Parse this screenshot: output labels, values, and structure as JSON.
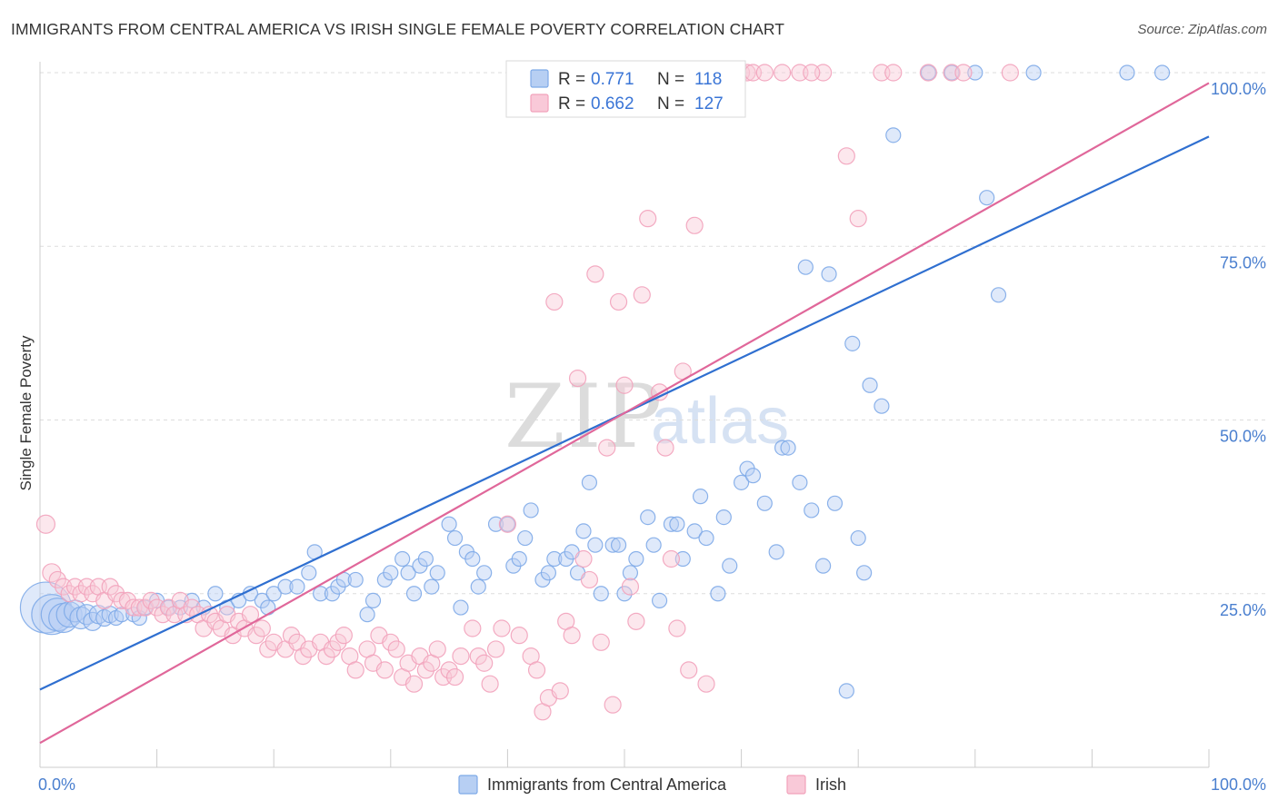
{
  "header": {
    "title": "IMMIGRANTS FROM CENTRAL AMERICA VS IRISH SINGLE FEMALE POVERTY CORRELATION CHART",
    "source": "Source: ZipAtlas.com"
  },
  "watermark": {
    "zip": "ZIP",
    "atlas": "atlas"
  },
  "chart_data": {
    "type": "scatter",
    "title": "IMMIGRANTS FROM CENTRAL AMERICA VS IRISH SINGLE FEMALE POVERTY CORRELATION CHART",
    "xlabel": "",
    "ylabel": "Single Female Poverty",
    "xlim": [
      0,
      100
    ],
    "ylim": [
      0,
      100
    ],
    "x_tick_labels": [
      "0.0%",
      "100.0%"
    ],
    "y_ticks": [
      {
        "value": 25,
        "label": "25.0%"
      },
      {
        "value": 50,
        "label": "50.0%"
      },
      {
        "value": 75,
        "label": "75.0%"
      },
      {
        "value": 100,
        "label": "100.0%"
      }
    ],
    "grid": "horizontal dashed",
    "legend_placement": "top-center",
    "stats": [
      {
        "r_label": "R =",
        "r_value": "0.771",
        "n_label": "N =",
        "n_value": "118"
      },
      {
        "r_label": "R =",
        "r_value": "0.662",
        "n_label": "N =",
        "n_value": "127"
      }
    ],
    "series": [
      {
        "name": "Immigrants from Central America",
        "color": "#7eaae8",
        "fill": "#b7cff3",
        "trend_color": "#2f6fd0",
        "trend": {
          "x": [
            0,
            100
          ],
          "y": [
            11.2,
            90.8
          ]
        },
        "points": [
          [
            0.5,
            23,
            28
          ],
          [
            1,
            22,
            22
          ],
          [
            1.5,
            22,
            18
          ],
          [
            2,
            21.5,
            16
          ],
          [
            2.5,
            22,
            14
          ],
          [
            3,
            22.5,
            12
          ],
          [
            3.5,
            21.5,
            12
          ],
          [
            4,
            22,
            11
          ],
          [
            4.5,
            21,
            10
          ],
          [
            5,
            22,
            10
          ],
          [
            5.5,
            21.5,
            9
          ],
          [
            6,
            22,
            9
          ],
          [
            6.5,
            21.5,
            8
          ],
          [
            7,
            22,
            8
          ],
          [
            8,
            22,
            8
          ],
          [
            8.5,
            21.5,
            8
          ],
          [
            9,
            23,
            8
          ],
          [
            10,
            24,
            8
          ],
          [
            11,
            23,
            8
          ],
          [
            12,
            23,
            8
          ],
          [
            13,
            24,
            8
          ],
          [
            14,
            23,
            8
          ],
          [
            15,
            25,
            8
          ],
          [
            16,
            23,
            8
          ],
          [
            17,
            24,
            8
          ],
          [
            18,
            25,
            8
          ],
          [
            19,
            24,
            8
          ],
          [
            19.5,
            23,
            8
          ],
          [
            20,
            25,
            8
          ],
          [
            21,
            26,
            8
          ],
          [
            22,
            26,
            8
          ],
          [
            23,
            28,
            8
          ],
          [
            23.5,
            31,
            8
          ],
          [
            24,
            25,
            8
          ],
          [
            25,
            25,
            8
          ],
          [
            25.5,
            26,
            8
          ],
          [
            26,
            27,
            8
          ],
          [
            27,
            27,
            8
          ],
          [
            28,
            22,
            8
          ],
          [
            28.5,
            24,
            8
          ],
          [
            29.5,
            27,
            8
          ],
          [
            30,
            28,
            8
          ],
          [
            31,
            30,
            8
          ],
          [
            31.5,
            28,
            8
          ],
          [
            32,
            25,
            8
          ],
          [
            32.5,
            29,
            8
          ],
          [
            33,
            30,
            8
          ],
          [
            33.5,
            26,
            8
          ],
          [
            34,
            28,
            8
          ],
          [
            35,
            35,
            8
          ],
          [
            35.5,
            33,
            8
          ],
          [
            36,
            23,
            8
          ],
          [
            36.5,
            31,
            8
          ],
          [
            37,
            30,
            8
          ],
          [
            37.5,
            26,
            8
          ],
          [
            38,
            28,
            8
          ],
          [
            39,
            35,
            8
          ],
          [
            40,
            35,
            8
          ],
          [
            40.5,
            29,
            8
          ],
          [
            41,
            30,
            8
          ],
          [
            41.5,
            33,
            8
          ],
          [
            42,
            37,
            8
          ],
          [
            43,
            27,
            8
          ],
          [
            43.5,
            28,
            8
          ],
          [
            44,
            30,
            8
          ],
          [
            45,
            30,
            8
          ],
          [
            45.5,
            31,
            8
          ],
          [
            46,
            28,
            8
          ],
          [
            46.5,
            34,
            8
          ],
          [
            47,
            41,
            8
          ],
          [
            47.5,
            32,
            8
          ],
          [
            48,
            25,
            8
          ],
          [
            49,
            32,
            8
          ],
          [
            49.5,
            32,
            8
          ],
          [
            50,
            25,
            8
          ],
          [
            50.5,
            28,
            8
          ],
          [
            51,
            30,
            8
          ],
          [
            52,
            36,
            8
          ],
          [
            52.5,
            32,
            8
          ],
          [
            53,
            24,
            8
          ],
          [
            54,
            35,
            8
          ],
          [
            54.5,
            35,
            8
          ],
          [
            55,
            30,
            8
          ],
          [
            56,
            34,
            8
          ],
          [
            56.5,
            39,
            8
          ],
          [
            57,
            33,
            8
          ],
          [
            58,
            25,
            8
          ],
          [
            58.5,
            36,
            8
          ],
          [
            59,
            29,
            8
          ],
          [
            60,
            41,
            8
          ],
          [
            60.5,
            43,
            8
          ],
          [
            61,
            42,
            8
          ],
          [
            62,
            38,
            8
          ],
          [
            63,
            31,
            8
          ],
          [
            63.5,
            46,
            8
          ],
          [
            64,
            46,
            8
          ],
          [
            65,
            41,
            8
          ],
          [
            65.5,
            72,
            8
          ],
          [
            66,
            37,
            8
          ],
          [
            67,
            29,
            8
          ],
          [
            67.5,
            71,
            8
          ],
          [
            68,
            38,
            8
          ],
          [
            69,
            11,
            8
          ],
          [
            69.5,
            61,
            8
          ],
          [
            70,
            33,
            8
          ],
          [
            70.5,
            28,
            8
          ],
          [
            71,
            55,
            8
          ],
          [
            72,
            52,
            8
          ],
          [
            73,
            91,
            8
          ],
          [
            76,
            100,
            8
          ],
          [
            78,
            100,
            8
          ],
          [
            80,
            100,
            8
          ],
          [
            81,
            82,
            8
          ],
          [
            82,
            68,
            8
          ],
          [
            85,
            100,
            8
          ],
          [
            93,
            100,
            8
          ],
          [
            96,
            100,
            8
          ]
        ]
      },
      {
        "name": "Irish",
        "color": "#f2a2bb",
        "fill": "#f9c9d8",
        "trend_color": "#e0679a",
        "trend": {
          "x": [
            0,
            100
          ],
          "y": [
            3.5,
            98.5
          ]
        },
        "points": [
          [
            0.5,
            35,
            10
          ],
          [
            1,
            28,
            10
          ],
          [
            1.5,
            27,
            9
          ],
          [
            2,
            26,
            9
          ],
          [
            2.5,
            25,
            9
          ],
          [
            3,
            26,
            9
          ],
          [
            3.5,
            25,
            9
          ],
          [
            4,
            26,
            9
          ],
          [
            4.5,
            25,
            9
          ],
          [
            5,
            26,
            9
          ],
          [
            5.5,
            24,
            9
          ],
          [
            6,
            26,
            9
          ],
          [
            6.5,
            25,
            9
          ],
          [
            7,
            24,
            9
          ],
          [
            7.5,
            24,
            9
          ],
          [
            8,
            23,
            9
          ],
          [
            8.5,
            23,
            9
          ],
          [
            9,
            23,
            9
          ],
          [
            9.5,
            24,
            9
          ],
          [
            10,
            23,
            9
          ],
          [
            10.5,
            22,
            9
          ],
          [
            11,
            23,
            9
          ],
          [
            11.5,
            22,
            9
          ],
          [
            12,
            24,
            9
          ],
          [
            12.5,
            22,
            9
          ],
          [
            13,
            23,
            9
          ],
          [
            13.5,
            22,
            9
          ],
          [
            14,
            20,
            9
          ],
          [
            14.5,
            22,
            9
          ],
          [
            15,
            21,
            9
          ],
          [
            15.5,
            20,
            9
          ],
          [
            16,
            22,
            9
          ],
          [
            16.5,
            19,
            9
          ],
          [
            17,
            21,
            9
          ],
          [
            17.5,
            20,
            9
          ],
          [
            18,
            22,
            9
          ],
          [
            18.5,
            19,
            9
          ],
          [
            19,
            20,
            9
          ],
          [
            19.5,
            17,
            9
          ],
          [
            20,
            18,
            9
          ],
          [
            21,
            17,
            9
          ],
          [
            21.5,
            19,
            9
          ],
          [
            22,
            18,
            9
          ],
          [
            22.5,
            16,
            9
          ],
          [
            23,
            17,
            9
          ],
          [
            24,
            18,
            9
          ],
          [
            24.5,
            16,
            9
          ],
          [
            25,
            17,
            9
          ],
          [
            25.5,
            18,
            9
          ],
          [
            26,
            19,
            9
          ],
          [
            26.5,
            16,
            9
          ],
          [
            27,
            14,
            9
          ],
          [
            28,
            17,
            9
          ],
          [
            28.5,
            15,
            9
          ],
          [
            29,
            19,
            9
          ],
          [
            29.5,
            14,
            9
          ],
          [
            30,
            18,
            9
          ],
          [
            30.5,
            17,
            9
          ],
          [
            31,
            13,
            9
          ],
          [
            31.5,
            15,
            9
          ],
          [
            32,
            12,
            9
          ],
          [
            32.5,
            16,
            9
          ],
          [
            33,
            14,
            9
          ],
          [
            33.5,
            15,
            9
          ],
          [
            34,
            17,
            9
          ],
          [
            34.5,
            13,
            9
          ],
          [
            35,
            14,
            9
          ],
          [
            35.5,
            13,
            9
          ],
          [
            36,
            16,
            9
          ],
          [
            37,
            20,
            9
          ],
          [
            37.5,
            16,
            9
          ],
          [
            38,
            15,
            9
          ],
          [
            38.5,
            12,
            9
          ],
          [
            39,
            17,
            9
          ],
          [
            39.5,
            20,
            9
          ],
          [
            40,
            35,
            9
          ],
          [
            41,
            19,
            9
          ],
          [
            42,
            16,
            9
          ],
          [
            42.5,
            14,
            9
          ],
          [
            43,
            8,
            9
          ],
          [
            43.5,
            10,
            9
          ],
          [
            44,
            67,
            9
          ],
          [
            44.5,
            11,
            9
          ],
          [
            45,
            21,
            9
          ],
          [
            45.5,
            19,
            9
          ],
          [
            46,
            56,
            9
          ],
          [
            46.5,
            30,
            9
          ],
          [
            47,
            27,
            9
          ],
          [
            47.5,
            71,
            9
          ],
          [
            48,
            18,
            9
          ],
          [
            48.5,
            46,
            9
          ],
          [
            49,
            9,
            9
          ],
          [
            49.5,
            67,
            9
          ],
          [
            50,
            55,
            9
          ],
          [
            50.5,
            26,
            9
          ],
          [
            51,
            21,
            9
          ],
          [
            51.5,
            68,
            9
          ],
          [
            52,
            79,
            9
          ],
          [
            53,
            54,
            9
          ],
          [
            53.5,
            46,
            9
          ],
          [
            54,
            30,
            9
          ],
          [
            54.5,
            20,
            9
          ],
          [
            55,
            57,
            9
          ],
          [
            55.5,
            14,
            9
          ],
          [
            56,
            78,
            9
          ],
          [
            57,
            12,
            9
          ],
          [
            58,
            100,
            9
          ],
          [
            58.5,
            100,
            9
          ],
          [
            59,
            100,
            9
          ],
          [
            60,
            100,
            9
          ],
          [
            60.5,
            100,
            9
          ],
          [
            61,
            100,
            9
          ],
          [
            62,
            100,
            9
          ],
          [
            65,
            100,
            9
          ],
          [
            67,
            100,
            9
          ],
          [
            69,
            88,
            9
          ],
          [
            70,
            79,
            9
          ],
          [
            72,
            100,
            9
          ],
          [
            73,
            100,
            9
          ],
          [
            76,
            100,
            9
          ],
          [
            78,
            100,
            9
          ],
          [
            79,
            100,
            9
          ],
          [
            83,
            100,
            9
          ],
          [
            55,
            100,
            9
          ],
          [
            56.5,
            100,
            9
          ],
          [
            63.5,
            100,
            9
          ],
          [
            66,
            100,
            9
          ]
        ]
      }
    ]
  }
}
